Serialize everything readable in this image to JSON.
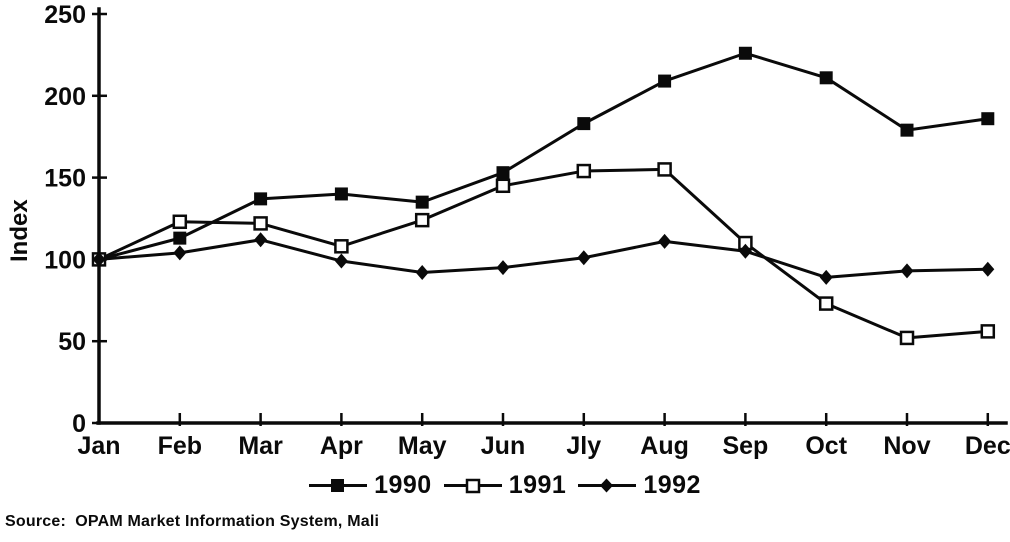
{
  "chart_data": {
    "type": "line",
    "title": "",
    "xlabel": "",
    "ylabel": "Index",
    "ylim": [
      0,
      250
    ],
    "yticks": [
      0,
      50,
      100,
      150,
      200,
      250
    ],
    "grid": false,
    "legend_position": "bottom-center",
    "line_color": "#000000",
    "categories": [
      "Jan",
      "Feb",
      "Mar",
      "Apr",
      "May",
      "Jun",
      "Jly",
      "Aug",
      "Sep",
      "Oct",
      "Nov",
      "Dec"
    ],
    "series": [
      {
        "name": "1990",
        "marker": "filled-square",
        "values": [
          100,
          113,
          137,
          140,
          135,
          153,
          183,
          209,
          226,
          211,
          179,
          186
        ]
      },
      {
        "name": "1991",
        "marker": "open-square",
        "values": [
          100,
          123,
          122,
          108,
          124,
          145,
          154,
          155,
          110,
          73,
          52,
          56
        ]
      },
      {
        "name": "1992",
        "marker": "filled-diamond",
        "values": [
          100,
          104,
          112,
          99,
          92,
          95,
          101,
          111,
          105,
          89,
          93,
          94
        ]
      }
    ]
  },
  "source_note": "Source:  OPAM Market Information System, Mali"
}
